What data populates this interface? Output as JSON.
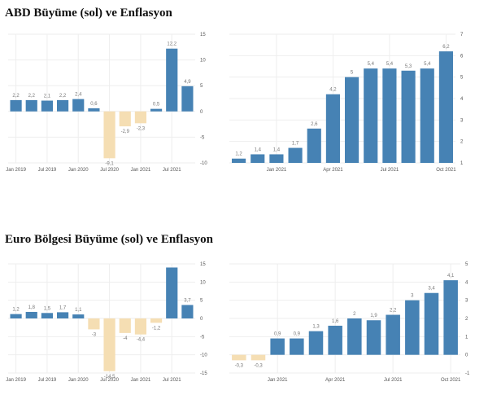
{
  "titles": {
    "us": "ABD Büyüme (sol) ve Enflasyon",
    "euro": "Euro Bölgesi Büyüme (sol) ve Enflasyon"
  },
  "colors": {
    "positive": "#4682b4",
    "negative": "#f5deb3",
    "grid": "#eeeeee"
  },
  "chart_data": [
    {
      "id": "us-growth",
      "type": "bar",
      "categories": [
        "2019Q1",
        "2019Q2",
        "2019Q3",
        "2019Q4",
        "2020Q1",
        "2020Q2",
        "2020Q3",
        "2020Q4",
        "2021Q1",
        "2021Q2",
        "2021Q3",
        "2021Q4"
      ],
      "values": [
        2.2,
        2.2,
        2.1,
        2.2,
        2.4,
        0.6,
        -9.1,
        -2.9,
        -2.3,
        0.5,
        12.2,
        4.9
      ],
      "labels": [
        "2,2",
        "2,2",
        "2,1",
        "2,2",
        "2,4",
        "0,6",
        "-9,1",
        "-2,9",
        "-2,3",
        "0,5",
        "12,2",
        "4,9"
      ],
      "ylim": [
        -10,
        15
      ],
      "yticks": [
        15,
        10,
        5,
        0,
        -5,
        -10
      ],
      "axis_side": "right",
      "xticks": [
        {
          "label": "Jan 2019",
          "index": 0
        },
        {
          "label": "Jul 2019",
          "index": 2
        },
        {
          "label": "Jan 2020",
          "index": 4
        },
        {
          "label": "Jul 2020",
          "index": 6
        },
        {
          "label": "Jan 2021",
          "index": 8
        },
        {
          "label": "Jul 2021",
          "index": 10
        }
      ]
    },
    {
      "id": "us-inflation",
      "type": "bar",
      "categories": [
        "2020-11",
        "2020-12",
        "2021-01",
        "2021-02",
        "2021-03",
        "2021-04",
        "2021-05",
        "2021-06",
        "2021-07",
        "2021-08",
        "2021-09",
        "2021-10"
      ],
      "values": [
        1.2,
        1.4,
        1.4,
        1.7,
        2.6,
        4.2,
        5,
        5.4,
        5.4,
        5.3,
        5.4,
        6.2
      ],
      "labels": [
        "1,2",
        "1,4",
        "1,4",
        "1,7",
        "2,6",
        "4,2",
        "5",
        "5,4",
        "5,4",
        "5,3",
        "5,4",
        "6,2"
      ],
      "ylim": [
        1,
        7
      ],
      "yticks": [
        7,
        6,
        5,
        4,
        3,
        2,
        1
      ],
      "axis_side": "right",
      "xticks": [
        {
          "label": "Jan 2021",
          "index": 2
        },
        {
          "label": "Apr 2021",
          "index": 5
        },
        {
          "label": "Jul 2021",
          "index": 8
        },
        {
          "label": "Oct 2021",
          "index": 11
        }
      ]
    },
    {
      "id": "euro-growth",
      "type": "bar",
      "categories": [
        "2019Q1",
        "2019Q2",
        "2019Q3",
        "2019Q4",
        "2020Q1",
        "2020Q2",
        "2020Q3",
        "2020Q4",
        "2021Q1",
        "2021Q2",
        "2021Q3",
        "2021Q4"
      ],
      "values": [
        1.2,
        1.8,
        1.5,
        1.7,
        1.1,
        -3,
        -14.5,
        -4,
        -4.4,
        -1.2,
        14,
        3.7
      ],
      "labels": [
        "1,2",
        "1,8",
        "1,5",
        "1,7",
        "1,1",
        "-3",
        "-14,5",
        "-4",
        "-4,4",
        "-1,2",
        "",
        "3,7"
      ],
      "ylim": [
        -15,
        15
      ],
      "yticks": [
        15,
        10,
        5,
        0,
        -5,
        -10,
        -15
      ],
      "axis_side": "right",
      "xticks": [
        {
          "label": "Jan 2019",
          "index": 0
        },
        {
          "label": "Jul 2019",
          "index": 2
        },
        {
          "label": "Jan 2020",
          "index": 4
        },
        {
          "label": "Jul 2020",
          "index": 6
        },
        {
          "label": "Jan 2021",
          "index": 8
        },
        {
          "label": "Jul 2021",
          "index": 10
        }
      ]
    },
    {
      "id": "euro-inflation",
      "type": "bar",
      "categories": [
        "2020-11",
        "2020-12",
        "2021-01",
        "2021-02",
        "2021-03",
        "2021-04",
        "2021-05",
        "2021-06",
        "2021-07",
        "2021-08",
        "2021-09",
        "2021-10"
      ],
      "values": [
        -0.3,
        -0.3,
        0.9,
        0.9,
        1.3,
        1.6,
        2,
        1.9,
        2.2,
        3,
        3.4,
        4.1
      ],
      "labels": [
        "-0,3",
        "-0,3",
        "0,9",
        "0,9",
        "1,3",
        "1,6",
        "2",
        "1,9",
        "2,2",
        "3",
        "3,4",
        "4,1"
      ],
      "ylim": [
        -1,
        5
      ],
      "yticks": [
        5,
        4,
        3,
        2,
        1,
        0,
        -1
      ],
      "axis_side": "right",
      "xticks": [
        {
          "label": "Jan 2021",
          "index": 2
        },
        {
          "label": "Apr 2021",
          "index": 5
        },
        {
          "label": "Jul 2021",
          "index": 8
        },
        {
          "label": "Oct 2021",
          "index": 11
        }
      ]
    }
  ]
}
